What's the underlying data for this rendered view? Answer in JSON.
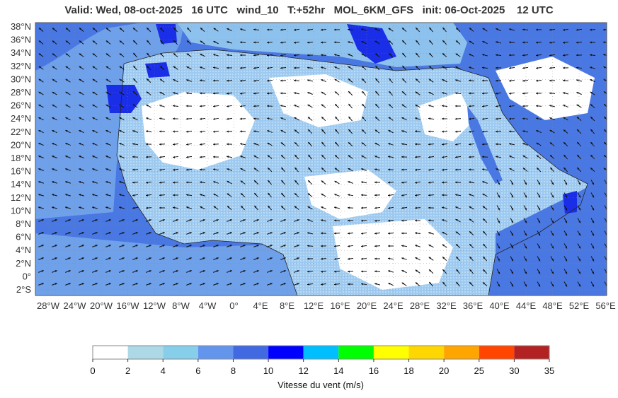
{
  "header": {
    "title": "Valid: Wed, 08-oct-2025   16 UTC   wind_10   T:+52hr   MOL_6KM_GFS   init: 06-Oct-2025    12 UTC"
  },
  "map": {
    "lat_labels": [
      "38°N",
      "36°N",
      "34°N",
      "32°N",
      "30°N",
      "28°N",
      "26°N",
      "24°N",
      "22°N",
      "20°N",
      "18°N",
      "16°N",
      "14°N",
      "12°N",
      "10°N",
      "8°N",
      "6°N",
      "4°N",
      "2°N",
      "0°",
      "2°S"
    ],
    "lon_labels": [
      "28°W",
      "24°W",
      "20°W",
      "16°W",
      "12°W",
      "8°W",
      "4°W",
      "0°",
      "4°E",
      "8°E",
      "12°E",
      "16°E",
      "20°E",
      "24°E",
      "28°E",
      "32°E",
      "36°E",
      "40°E",
      "44°E",
      "48°E",
      "52°E",
      "56°E"
    ],
    "ocean_color": "#4169e1",
    "land_color": "#ffffff"
  },
  "colorbar": {
    "title": "Vitesse du vent (m/s)",
    "ticks": [
      "0",
      "2",
      "4",
      "6",
      "8",
      "10",
      "12",
      "14",
      "16",
      "18",
      "20",
      "25",
      "30",
      "35"
    ],
    "colors": [
      "#ffffff",
      "#add8e6",
      "#87ceeb",
      "#6495ed",
      "#4169e1",
      "#0000ff",
      "#00bfff",
      "#00ff00",
      "#ffff00",
      "#ffd700",
      "#ffa500",
      "#ff4500",
      "#b22222"
    ]
  }
}
